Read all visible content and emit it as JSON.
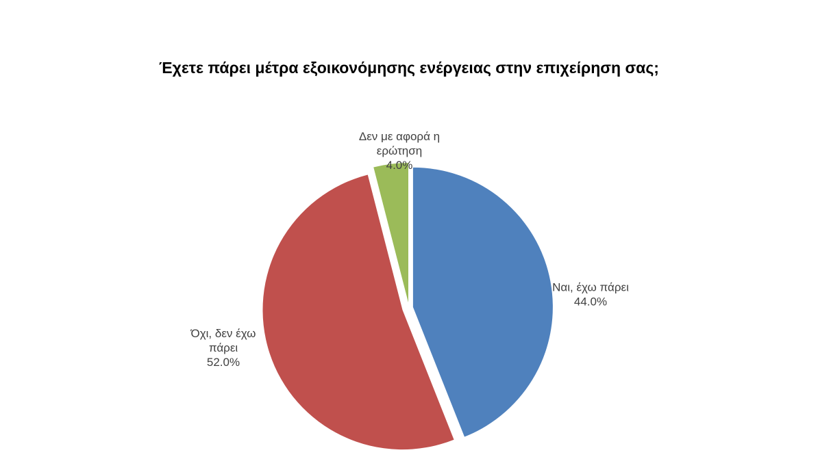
{
  "chart_data": {
    "type": "pie",
    "title": "Έχετε πάρει μέτρα εξοικονόμησης ενέργειας στην επιχείρηση σας;",
    "slices": [
      {
        "name": "Ναι, έχω πάρει",
        "value": 44.0,
        "value_label": "44.0%",
        "color": "#4F81BD",
        "label_lines": [
          "Ναι, έχω πάρει",
          "44.0%"
        ]
      },
      {
        "name": "Όχι, δεν έχω πάρει",
        "value": 52.0,
        "value_label": "52.0%",
        "color": "#C0504D",
        "label_lines": [
          "Όχι, δεν έχω",
          "πάρει",
          "52.0%"
        ]
      },
      {
        "name": "Δεν με αφορά η ερώτηση",
        "value": 4.0,
        "value_label": "4.0%",
        "color": "#9BBB59",
        "label_lines": [
          "Δεν με αφορά η",
          "ερώτηση",
          "4.0%"
        ]
      }
    ],
    "start_angle": "12 o'clock",
    "direction": "clockwise",
    "exploded": true,
    "legend": "none"
  }
}
